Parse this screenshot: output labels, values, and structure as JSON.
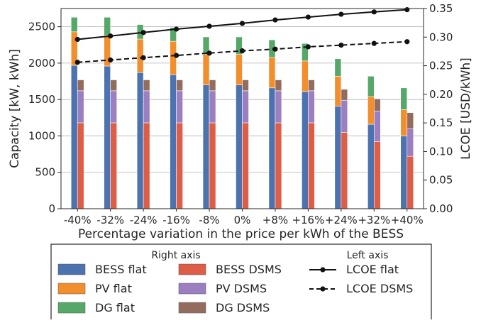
{
  "chart_data": {
    "type": "bar",
    "categories": [
      "-40%",
      "-32%",
      "-24%",
      "-16%",
      "-8%",
      "0%",
      "+8%",
      "+16%",
      "+24%",
      "+32%",
      "+40%"
    ],
    "xlabel": "Percentage variation in the price per kWh of the BESS",
    "ylabel": "Capacity [kW, kWh]",
    "y2label": "LCOE [USD/kWh]",
    "ylim": [
      0,
      2750
    ],
    "yticks": [
      "0",
      "500",
      "1000",
      "1500",
      "2000",
      "2500"
    ],
    "y2lim": [
      0,
      0.35
    ],
    "y2ticks": [
      "0.00",
      "0.05",
      "0.10",
      "0.15",
      "0.20",
      "0.25",
      "0.30",
      "0.35"
    ],
    "grid": true,
    "stacked_bars": [
      {
        "name": "flat",
        "position": "left",
        "layers": [
          {
            "name": "BESS flat",
            "color": "#4c72b0",
            "values": [
              1970,
              1960,
              1870,
              1840,
              1700,
              1700,
              1660,
              1610,
              1410,
              1160,
              1000
            ]
          },
          {
            "name": "PV flat",
            "color": "#f28e2b",
            "values": [
              460,
              420,
              460,
              460,
              420,
              420,
              420,
              420,
              410,
              380,
              360
            ]
          },
          {
            "name": "DG flat",
            "color": "#55a868",
            "values": [
              200,
              250,
              200,
              190,
              240,
              240,
              240,
              240,
              240,
              280,
              300
            ]
          }
        ]
      },
      {
        "name": "DSMS",
        "position": "right",
        "layers": [
          {
            "name": "BESS DSMS",
            "color": "#dd5d46",
            "values": [
              1180,
              1180,
              1180,
              1180,
              1180,
              1180,
              1180,
              1180,
              1050,
              920,
              720
            ]
          },
          {
            "name": "PV DSMS",
            "color": "#9b7fc0",
            "values": [
              440,
              440,
              440,
              440,
              440,
              440,
              440,
              440,
              440,
              420,
              380
            ]
          },
          {
            "name": "DG DSMS",
            "color": "#946c5e",
            "values": [
              150,
              150,
              150,
              150,
              150,
              150,
              150,
              150,
              150,
              170,
              220
            ]
          }
        ]
      }
    ],
    "lines": [
      {
        "name": "LCOE flat",
        "axis": "right",
        "style": "solid",
        "values": [
          0.296,
          0.302,
          0.308,
          0.314,
          0.319,
          0.324,
          0.33,
          0.335,
          0.34,
          0.344,
          0.348
        ]
      },
      {
        "name": "LCOE DSMS",
        "axis": "right",
        "style": "dashed",
        "values": [
          0.256,
          0.26,
          0.264,
          0.268,
          0.272,
          0.276,
          0.279,
          0.283,
          0.286,
          0.289,
          0.292
        ]
      }
    ],
    "legend": {
      "placement": "bottom",
      "right_axis_heading": "Right axis",
      "left_axis_heading": "Left axis",
      "bar_items": [
        "BESS flat",
        "BESS DSMS",
        "PV flat",
        "PV DSMS",
        "DG flat",
        "DG DSMS"
      ],
      "line_items": [
        "LCOE flat",
        "LCOE DSMS"
      ]
    }
  }
}
